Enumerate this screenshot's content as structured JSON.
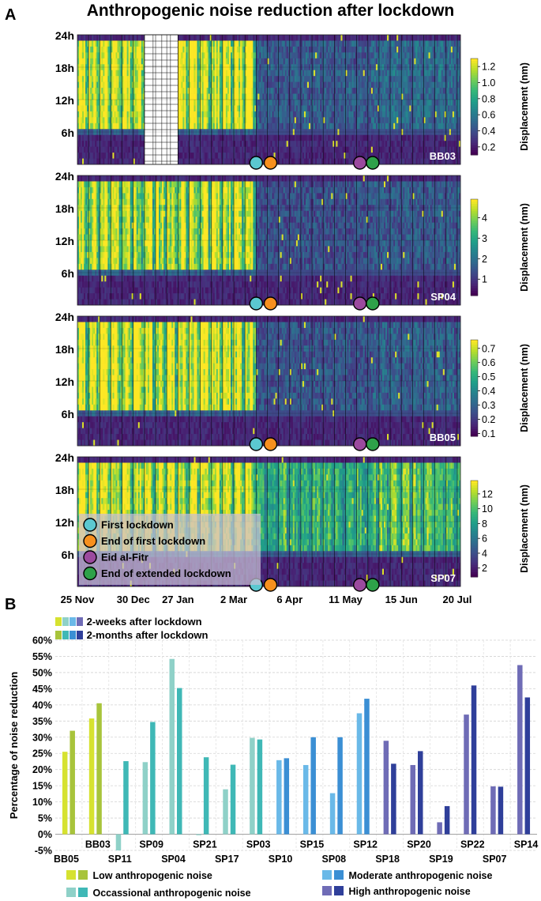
{
  "panel_a": {
    "letter": "A",
    "title": "Anthropogenic noise reduction after lockdown"
  },
  "panel_b": {
    "letter": "B"
  },
  "heatmap_events": [
    {
      "label": "First lockdown",
      "color": "#5bc8d0"
    },
    {
      "label": "End of first lockdown",
      "color": "#f7901e"
    },
    {
      "label": "Eid al-Fitr",
      "color": "#9b4a9e"
    },
    {
      "label": "End of extended lockdown",
      "color": "#2ea149"
    }
  ],
  "colors": {
    "low_2w": "#d6e230",
    "low_2m": "#a8c43b",
    "occ_2w": "#8fd1c8",
    "occ_2m": "#3fb8b6",
    "mod_2w": "#6ab9e8",
    "mod_2m": "#3b8fd4",
    "high_2w": "#6f6cb6",
    "high_2m": "#2f3f9a"
  },
  "chart_data": [
    {
      "type": "heatmap",
      "station": "BB03",
      "ylabels": [
        "24h",
        "18h",
        "12h",
        "6h"
      ],
      "colorbar_label": "Displacement (nm)",
      "colorbar_ticks": [
        "1.2",
        "1.0",
        "0.8",
        "0.6",
        "0.4",
        "0.2"
      ],
      "colorbar_values": [
        1.2,
        1.0,
        0.8,
        0.6,
        0.4,
        0.2
      ],
      "colorbar_range": [
        0.1,
        1.3
      ],
      "data_gap": "≈ 6 Jan – 1 Feb 2020"
    },
    {
      "type": "heatmap",
      "station": "SP04",
      "ylabels": [
        "24h",
        "18h",
        "12h",
        "6h"
      ],
      "colorbar_label": "Displacement (nm)",
      "colorbar_ticks": [
        "4",
        "3",
        "2",
        "1"
      ],
      "colorbar_values": [
        4,
        3,
        2,
        1
      ],
      "colorbar_range": [
        0.2,
        4.9
      ]
    },
    {
      "type": "heatmap",
      "station": "BB05",
      "ylabels": [
        "24h",
        "18h",
        "12h",
        "6h"
      ],
      "colorbar_label": "Displacement (nm)",
      "colorbar_ticks": [
        "0.7",
        "0.6",
        "0.5",
        "0.4",
        "0.3",
        "0.2",
        "0.1"
      ],
      "colorbar_values": [
        0.7,
        0.6,
        0.5,
        0.4,
        0.3,
        0.2,
        0.1
      ],
      "colorbar_range": [
        0.08,
        0.76
      ]
    },
    {
      "type": "heatmap",
      "station": "SP07",
      "ylabels": [
        "24h",
        "18h",
        "12h",
        "6h"
      ],
      "colorbar_label": "Displacement (nm)",
      "colorbar_ticks": [
        "12",
        "10",
        "8",
        "6",
        "4",
        "2"
      ],
      "colorbar_values": [
        12,
        10,
        8,
        6,
        4,
        2
      ],
      "colorbar_range": [
        0.8,
        13.8
      ],
      "xtick_labels": [
        "25 Nov",
        "30 Dec",
        "27 Jan",
        "2 Mar",
        "6 Apr",
        "11 May",
        "15 Jun",
        "20 Jul"
      ],
      "x_start_year": "2019",
      "x_end_year": "2020"
    },
    {
      "type": "bar",
      "ylabel": "Percentage of noise reduction",
      "ylim": [
        -5,
        60
      ],
      "yticks": [
        "60%",
        "55%",
        "50%",
        "45%",
        "40%",
        "35%",
        "30%",
        "25%",
        "20%",
        "15%",
        "10%",
        "5%",
        "0%",
        "-5%"
      ],
      "ytick_values": [
        60,
        55,
        50,
        45,
        40,
        35,
        30,
        25,
        20,
        15,
        10,
        5,
        0,
        -5
      ],
      "legend_periods": [
        "2-weeks after lockdown",
        "2-months after lockdown"
      ],
      "legend_categories": [
        {
          "key": "low",
          "label": "Low anthropogenic noise"
        },
        {
          "key": "occ",
          "label": "Occassional anthropogenic noise"
        },
        {
          "key": "mod",
          "label": "Moderate anthropogenic noise"
        },
        {
          "key": "high",
          "label": "High anthropogenic noise"
        }
      ],
      "stations": [
        {
          "name": "BB05",
          "category": "low",
          "two_weeks": 25.5,
          "two_months": 32.0
        },
        {
          "name": "BB03",
          "category": "low",
          "two_weeks": 35.8,
          "two_months": 40.5
        },
        {
          "name": "SP11",
          "category": "occ",
          "two_weeks": -5.0,
          "two_months": 22.6
        },
        {
          "name": "SP09",
          "category": "occ",
          "two_weeks": 22.3,
          "two_months": 34.7
        },
        {
          "name": "SP04",
          "category": "occ",
          "two_weeks": 54.2,
          "two_months": 45.2
        },
        {
          "name": "SP21",
          "category": "occ",
          "two_weeks": -0.3,
          "two_months": 23.8
        },
        {
          "name": "SP17",
          "category": "occ",
          "two_weeks": 13.9,
          "two_months": 21.5
        },
        {
          "name": "SP03",
          "category": "occ",
          "two_weeks": 29.8,
          "two_months": 29.3
        },
        {
          "name": "SP10",
          "category": "mod",
          "two_weeks": 22.9,
          "two_months": 23.5
        },
        {
          "name": "SP15",
          "category": "mod",
          "two_weeks": 21.4,
          "two_months": 30.0
        },
        {
          "name": "SP08",
          "category": "mod",
          "two_weeks": 12.7,
          "two_months": 30.0
        },
        {
          "name": "SP12",
          "category": "mod",
          "two_weeks": 37.4,
          "two_months": 41.9
        },
        {
          "name": "SP18",
          "category": "high",
          "two_weeks": 28.9,
          "two_months": 21.8
        },
        {
          "name": "SP20",
          "category": "high",
          "two_weeks": 21.4,
          "two_months": 25.7
        },
        {
          "name": "SP19",
          "category": "high",
          "two_weeks": 3.7,
          "two_months": 8.7
        },
        {
          "name": "SP22",
          "category": "high",
          "two_weeks": 37.0,
          "two_months": 46.0
        },
        {
          "name": "SP07",
          "category": "high",
          "two_weeks": 14.8,
          "two_months": 14.7
        },
        {
          "name": "SP14",
          "category": "high",
          "two_weeks": 52.3,
          "two_months": 42.3
        }
      ]
    }
  ]
}
